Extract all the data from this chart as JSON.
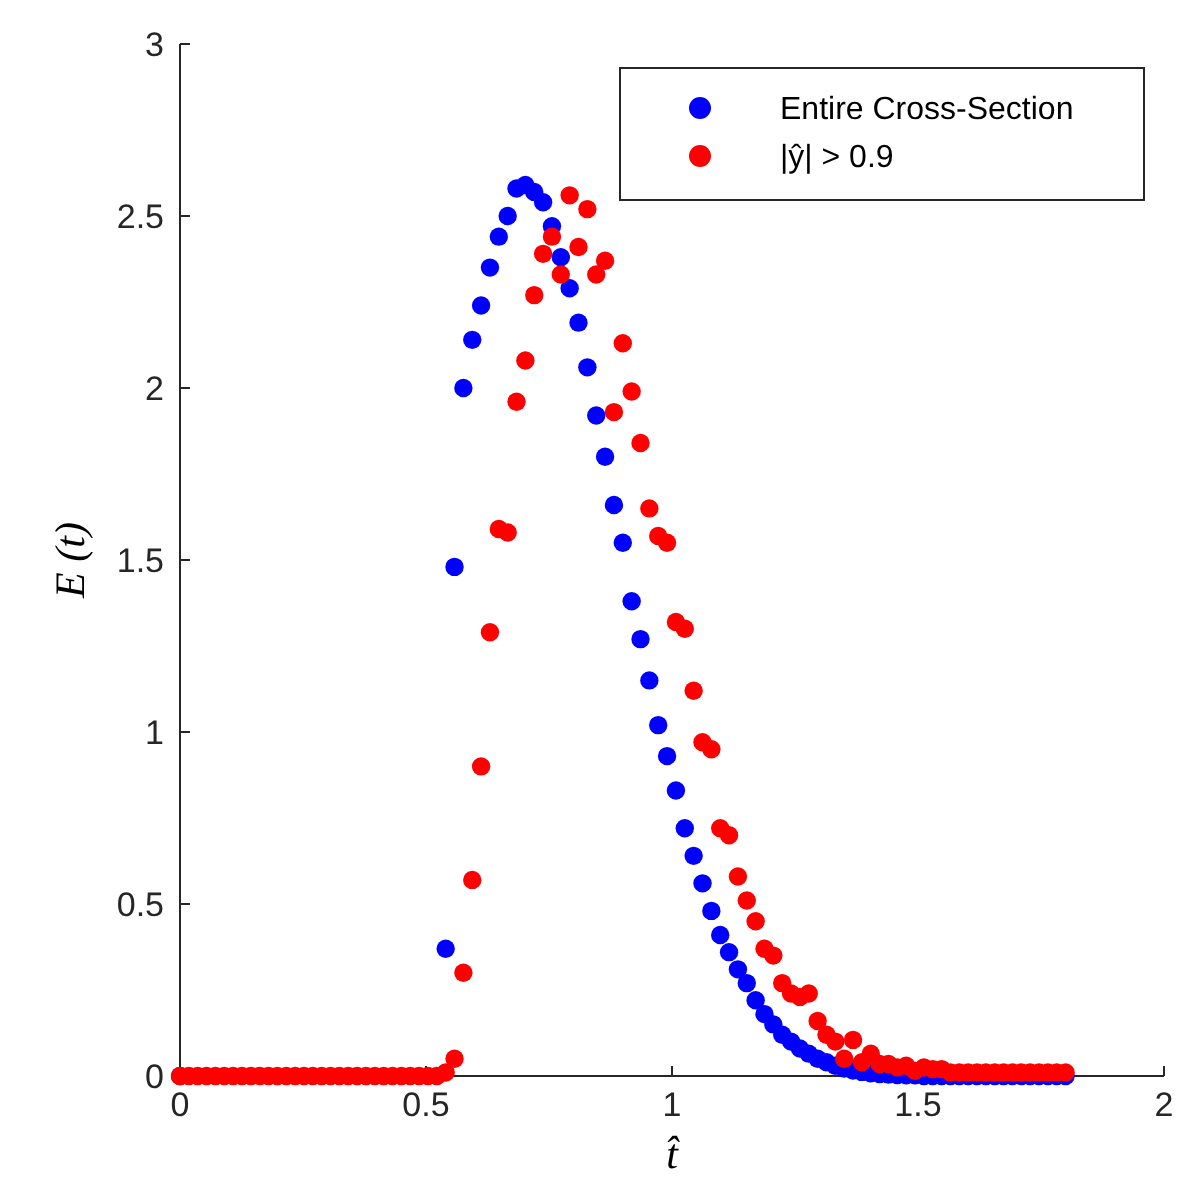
{
  "chart_data": {
    "type": "scatter",
    "xlabel": "t̂",
    "ylabel": "E (t)",
    "xlim": [
      0,
      2
    ],
    "ylim": [
      0,
      3
    ],
    "xticks": [
      0,
      0.5,
      1,
      1.5,
      2
    ],
    "yticks": [
      0,
      0.5,
      1,
      1.5,
      2,
      2.5,
      3
    ],
    "legend": "top right",
    "marker": "circle",
    "grid": false,
    "x": [
      0,
      0.018,
      0.036,
      0.054,
      0.072,
      0.09,
      0.108,
      0.126,
      0.144,
      0.162,
      0.18,
      0.198,
      0.216,
      0.234,
      0.252,
      0.27,
      0.288,
      0.306,
      0.324,
      0.342,
      0.36,
      0.378,
      0.396,
      0.414,
      0.432,
      0.45,
      0.468,
      0.486,
      0.504,
      0.522,
      0.54,
      0.558,
      0.576,
      0.594,
      0.612,
      0.63,
      0.648,
      0.666,
      0.684,
      0.702,
      0.72,
      0.738,
      0.756,
      0.774,
      0.792,
      0.81,
      0.828,
      0.846,
      0.864,
      0.882,
      0.9,
      0.918,
      0.936,
      0.954,
      0.972,
      0.99,
      1.008,
      1.026,
      1.044,
      1.062,
      1.08,
      1.098,
      1.116,
      1.134,
      1.152,
      1.17,
      1.188,
      1.206,
      1.224,
      1.242,
      1.26,
      1.278,
      1.296,
      1.314,
      1.332,
      1.35,
      1.368,
      1.386,
      1.404,
      1.422,
      1.44,
      1.458,
      1.476,
      1.494,
      1.512,
      1.53,
      1.548,
      1.566,
      1.584,
      1.602,
      1.62,
      1.638,
      1.656,
      1.674,
      1.692,
      1.71,
      1.728,
      1.746,
      1.764,
      1.782,
      1.8
    ],
    "series": [
      {
        "name": "Entire Cross-Section",
        "color": "#0000ff",
        "values": [
          0,
          null,
          null,
          null,
          null,
          null,
          null,
          null,
          null,
          null,
          null,
          null,
          null,
          null,
          null,
          null,
          null,
          null,
          null,
          null,
          null,
          null,
          null,
          null,
          null,
          null,
          null,
          null,
          null,
          null,
          0.37,
          1.48,
          2.0,
          2.14,
          2.24,
          2.35,
          2.44,
          2.5,
          2.58,
          2.59,
          2.57,
          2.54,
          2.47,
          2.38,
          2.29,
          2.19,
          2.06,
          1.92,
          1.8,
          1.66,
          1.55,
          1.38,
          1.27,
          1.15,
          1.02,
          0.93,
          0.83,
          0.72,
          0.64,
          0.56,
          0.48,
          0.41,
          0.36,
          0.31,
          0.27,
          0.22,
          0.18,
          0.15,
          0.12,
          0.1,
          0.08,
          0.065,
          0.05,
          0.04,
          0.03,
          0.022,
          0.016,
          0.012,
          0.008,
          0.006,
          0.004,
          0.003,
          0.002,
          0.002,
          0,
          0,
          0,
          0,
          0,
          0,
          0,
          0,
          0,
          0,
          0,
          0,
          0,
          0,
          0,
          0,
          0
        ]
      },
      {
        "name": "|ŷ| > 0.9",
        "color": "#ff0000",
        "values": [
          0,
          0,
          0,
          0,
          0,
          0,
          0,
          0,
          0,
          0,
          0,
          0,
          0,
          0,
          0,
          0,
          0,
          0,
          0,
          0,
          0,
          0,
          0,
          0,
          0,
          0,
          0,
          0,
          0,
          0,
          0.01,
          0.05,
          0.3,
          0.57,
          0.9,
          1.29,
          1.59,
          1.58,
          1.96,
          2.08,
          2.27,
          2.39,
          2.44,
          2.33,
          2.56,
          2.41,
          2.52,
          2.33,
          2.37,
          1.93,
          2.13,
          1.99,
          1.84,
          1.65,
          1.57,
          1.55,
          1.32,
          1.3,
          1.12,
          0.97,
          0.95,
          0.72,
          0.7,
          0.58,
          0.51,
          0.45,
          0.37,
          0.35,
          0.27,
          0.24,
          0.23,
          0.24,
          0.16,
          0.12,
          0.1,
          0.05,
          0.105,
          0.04,
          0.065,
          0.035,
          0.035,
          0.025,
          0.03,
          0.015,
          0.025,
          0.02,
          0.02,
          0.01,
          0.01,
          0.01,
          0.01,
          0.01,
          0.01,
          0.01,
          0.01,
          0.01,
          0.01,
          0.01,
          0.01,
          0.01,
          0.01
        ]
      }
    ]
  }
}
